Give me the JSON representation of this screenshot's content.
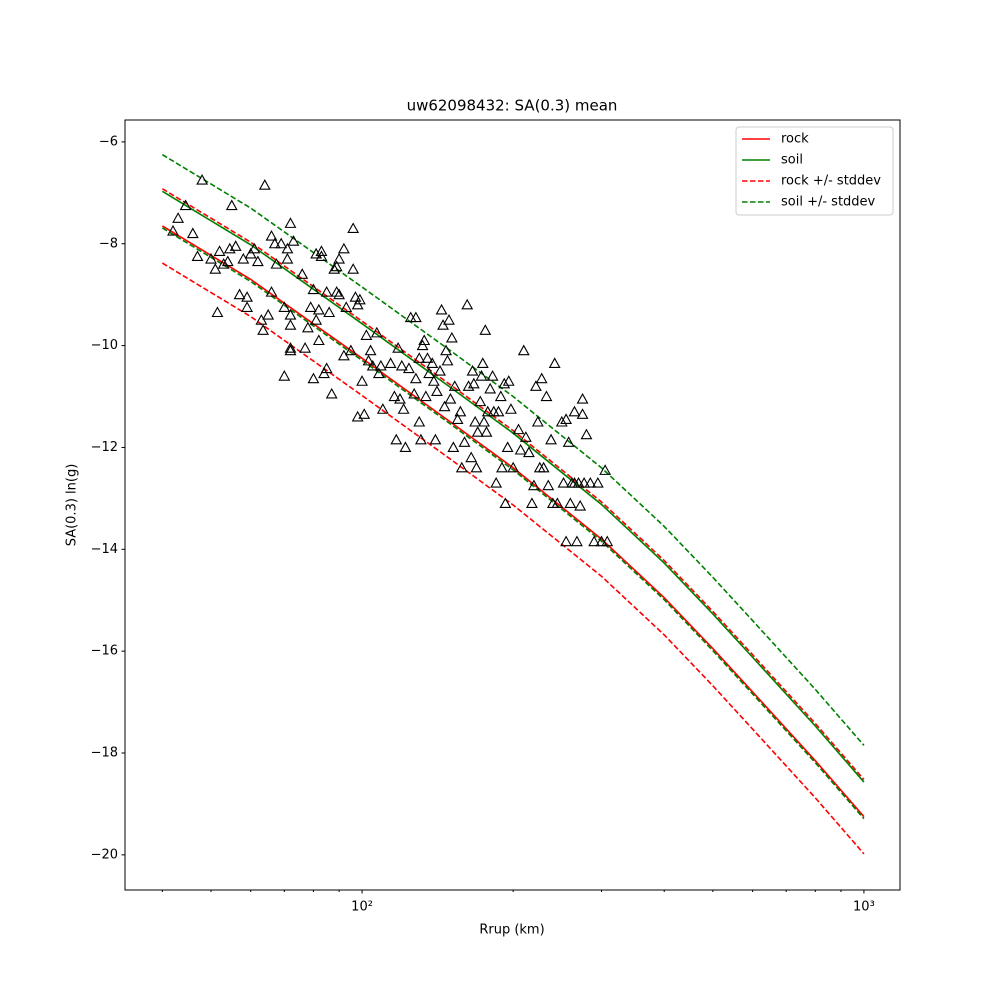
{
  "chart_data": {
    "type": "line",
    "title": "uw62098432: SA(0.3) mean",
    "xlabel": "Rrup (km)",
    "ylabel": "SA(0.3) ln(g)",
    "xscale": "log",
    "xlim": [
      33.7,
      1180
    ],
    "ylim": [
      -20.69,
      -5.57
    ],
    "xticks": [
      {
        "value": 100,
        "label": "10²"
      },
      {
        "value": 1000,
        "label": "10³"
      }
    ],
    "xminorticks": [
      40,
      50,
      60,
      70,
      80,
      90,
      200,
      300,
      400,
      500,
      600,
      700,
      800,
      900
    ],
    "yticks": [
      {
        "value": -6,
        "label": "−6"
      },
      {
        "value": -8,
        "label": "−8"
      },
      {
        "value": -10,
        "label": "−10"
      },
      {
        "value": -12,
        "label": "−12"
      },
      {
        "value": -14,
        "label": "−14"
      },
      {
        "value": -16,
        "label": "−16"
      },
      {
        "value": -18,
        "label": "−18"
      },
      {
        "value": -20,
        "label": "−20"
      }
    ],
    "legend": "upper right",
    "x": [
      40,
      60,
      100,
      150,
      200,
      300,
      400,
      500,
      600,
      800,
      1000
    ],
    "series": [
      {
        "name": "rock",
        "color": "#ff0000",
        "style": "solid",
        "values": [
          -7.65,
          -8.7,
          -10.25,
          -11.5,
          -12.4,
          -13.8,
          -14.95,
          -15.95,
          -16.8,
          -18.15,
          -19.25
        ]
      },
      {
        "name": "soil",
        "color": "#008000",
        "style": "solid",
        "values": [
          -6.97,
          -8.02,
          -9.57,
          -10.82,
          -11.72,
          -13.12,
          -14.27,
          -15.27,
          -16.12,
          -17.47,
          -18.57
        ]
      },
      {
        "name": "rock +/- stddev",
        "color": "#ff0000",
        "style": "dashed",
        "upper": [
          -6.92,
          -7.97,
          -9.52,
          -10.77,
          -11.67,
          -13.07,
          -14.22,
          -15.22,
          -16.07,
          -17.42,
          -18.52
        ],
        "lower": [
          -8.38,
          -9.43,
          -10.98,
          -12.23,
          -13.13,
          -14.53,
          -15.68,
          -16.68,
          -17.53,
          -18.88,
          -19.98
        ]
      },
      {
        "name": "soil +/- stddev",
        "color": "#008000",
        "style": "dashed",
        "upper": [
          -6.25,
          -7.3,
          -8.85,
          -10.1,
          -11.0,
          -12.4,
          -13.55,
          -14.55,
          -15.4,
          -16.75,
          -17.85
        ],
        "lower": [
          -7.69,
          -8.74,
          -10.29,
          -11.54,
          -12.44,
          -13.84,
          -14.99,
          -15.99,
          -16.84,
          -18.19,
          -19.29
        ]
      }
    ],
    "observations": {
      "marker": "triangle",
      "color": "#000000",
      "x": [
        42,
        43,
        44.5,
        46,
        47,
        48,
        50,
        51,
        51.5,
        52,
        53,
        54,
        54.5,
        55,
        56,
        57,
        58,
        59,
        59,
        60,
        61,
        62,
        63,
        63.5,
        64,
        65,
        66,
        66,
        67,
        67.5,
        69,
        70,
        70,
        71,
        71,
        72,
        72,
        72,
        72,
        72,
        73,
        76,
        77,
        78,
        79,
        80,
        80,
        81,
        81,
        82,
        82,
        83,
        83,
        84,
        85,
        85,
        86,
        87,
        88,
        89,
        89,
        90,
        90,
        92,
        92,
        93,
        95,
        96,
        96,
        97,
        98,
        98,
        99,
        100,
        101,
        102,
        103,
        104,
        105,
        107,
        108,
        109,
        110,
        114,
        116,
        117,
        118,
        119,
        120,
        121,
        122,
        124,
        125,
        127,
        128,
        128,
        130,
        130,
        131,
        132,
        133,
        134,
        135,
        136,
        138,
        139,
        140,
        141,
        143,
        144,
        145,
        146,
        147,
        148,
        149,
        150,
        151,
        152,
        153,
        155,
        157,
        158,
        160,
        162,
        163,
        165,
        166,
        167,
        168,
        169,
        170,
        172,
        173,
        174,
        175,
        176,
        177,
        178,
        180,
        182,
        183,
        185,
        187,
        189,
        190,
        192,
        193,
        195,
        196,
        198,
        200,
        205,
        207,
        210,
        212,
        215,
        218,
        220,
        222,
        224,
        226,
        228,
        230,
        233,
        235,
        238,
        240,
        242,
        245,
        250,
        252,
        255,
        258,
        260,
        262,
        265,
        268,
        270,
        272,
        275,
        277,
        280,
        285,
        290,
        295,
        300,
        305,
        308,
        255,
        275,
        265
      ],
      "values": [
        -7.75,
        -7.5,
        -7.25,
        -7.8,
        -8.25,
        -6.75,
        -8.3,
        -8.5,
        -9.35,
        -8.15,
        -8.4,
        -8.35,
        -8.1,
        -7.25,
        -8.05,
        -9.0,
        -8.3,
        -9.05,
        -9.25,
        -8.2,
        -8.1,
        -8.35,
        -9.5,
        -9.7,
        -6.85,
        -9.4,
        -8.95,
        -7.85,
        -8.0,
        -8.4,
        -8.0,
        -10.6,
        -9.25,
        -8.3,
        -8.1,
        -7.6,
        -9.6,
        -10.05,
        -10.1,
        -9.4,
        -7.95,
        -8.6,
        -10.05,
        -9.65,
        -9.25,
        -8.9,
        -10.65,
        -9.5,
        -8.2,
        -9.3,
        -9.9,
        -8.25,
        -8.15,
        -10.55,
        -10.45,
        -8.95,
        -9.35,
        -10.95,
        -8.5,
        -8.45,
        -8.95,
        -9.0,
        -8.3,
        -10.2,
        -8.1,
        -9.25,
        -10.1,
        -8.5,
        -7.7,
        -9.05,
        -11.4,
        -9.2,
        -9.1,
        -10.7,
        -11.35,
        -9.8,
        -10.3,
        -10.1,
        -10.4,
        -9.75,
        -10.55,
        -10.4,
        -11.25,
        -10.35,
        -11.0,
        -11.85,
        -10.05,
        -11.05,
        -10.4,
        -11.25,
        -12.0,
        -10.45,
        -9.45,
        -10.95,
        -10.65,
        -9.45,
        -10.25,
        -11.5,
        -11.85,
        -10.0,
        -9.9,
        -11.0,
        -10.25,
        -10.55,
        -10.35,
        -10.7,
        -11.85,
        -10.9,
        -10.5,
        -9.3,
        -9.6,
        -11.2,
        -10.1,
        -10.3,
        -9.5,
        -11.05,
        -9.85,
        -12.0,
        -10.8,
        -11.45,
        -11.3,
        -12.4,
        -11.9,
        -9.2,
        -10.8,
        -12.2,
        -10.5,
        -10.75,
        -11.5,
        -12.4,
        -11.7,
        -11.1,
        -10.6,
        -10.35,
        -11.5,
        -9.7,
        -11.7,
        -11.3,
        -10.85,
        -10.6,
        -11.3,
        -12.7,
        -11.3,
        -11.0,
        -12.4,
        -10.75,
        -13.1,
        -12.0,
        -10.7,
        -11.25,
        -12.4,
        -11.65,
        -12.05,
        -10.1,
        -11.8,
        -12.1,
        -13.1,
        -12.75,
        -10.8,
        -11.5,
        -12.4,
        -10.65,
        -12.4,
        -11.0,
        -12.75,
        -11.85,
        -13.1,
        -10.35,
        -13.1,
        -11.5,
        -12.7,
        -13.85,
        -11.9,
        -13.1,
        -12.7,
        -12.7,
        -13.85,
        -12.7,
        -13.15,
        -11.35,
        -12.7,
        -11.75,
        -12.7,
        -13.85,
        -12.7,
        -13.85,
        -12.45,
        -13.85,
        -11.45,
        -11.05,
        -11.3
      ]
    }
  }
}
